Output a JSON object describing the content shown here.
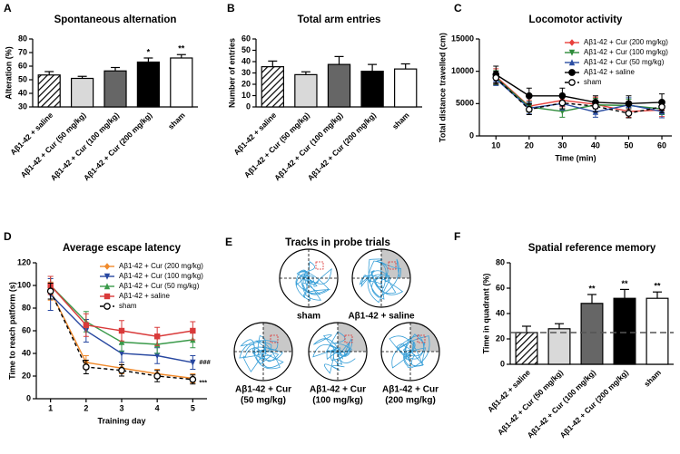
{
  "chart_data": [
    {
      "panel": "A",
      "type": "bar",
      "title": "Spontaneous alternation",
      "ylabel": "Alteration (%)",
      "categories": [
        "Aβ1-42 + saline",
        "Aβ1-42 + Cur (50 mg/kg)",
        "Aβ1-42 + Cur (100 mg/kg)",
        "Aβ1-42 + Cur (200 mg/kg)",
        "sham"
      ],
      "values": [
        53.5,
        51,
        56.5,
        63,
        66
      ],
      "errors": [
        2.5,
        1.5,
        2.5,
        3,
        2.5
      ],
      "colors": [
        "hatch",
        "#d9d9d9",
        "#666666",
        "#000000",
        "#ffffff"
      ],
      "annotations": [
        null,
        null,
        null,
        "*",
        "**"
      ],
      "ylim": [
        30,
        80
      ],
      "yticks": [
        30,
        40,
        50,
        60,
        70,
        80
      ]
    },
    {
      "panel": "B",
      "type": "bar",
      "title": "Total arm entries",
      "ylabel": "Number of entries",
      "categories": [
        "Aβ1-42 + saline",
        "Aβ1-42 + Cur (50 mg/kg)",
        "Aβ1-42 + Cur (100 mg/kg)",
        "Aβ1-42 + Cur (200 mg/kg)",
        "sham"
      ],
      "values": [
        35.5,
        28.5,
        37.5,
        31.5,
        33.5
      ],
      "errors": [
        5,
        2.5,
        7,
        6,
        4.5
      ],
      "colors": [
        "hatch",
        "#d9d9d9",
        "#666666",
        "#000000",
        "#ffffff"
      ],
      "ylim": [
        0,
        60
      ],
      "yticks": [
        0,
        10,
        20,
        30,
        40,
        50,
        60
      ]
    },
    {
      "panel": "C",
      "type": "line",
      "title": "Locomotor activity",
      "ylabel": "Total distance travelled (cm)",
      "xlabel": "Time (min)",
      "x": [
        10,
        20,
        30,
        40,
        50,
        60
      ],
      "xlim": [
        5,
        63
      ],
      "xticks": [
        10,
        20,
        30,
        40,
        50,
        60
      ],
      "ylim": [
        0,
        15000
      ],
      "yticks": [
        0,
        5000,
        10000,
        15000
      ],
      "legend": "upper right",
      "series": [
        {
          "name": "Aβ1-42 + Cur (200 mg/kg)",
          "color": "#e8413c",
          "marker": "diamond",
          "values": [
            9200,
            4600,
            5500,
            4900,
            3800,
            4000
          ],
          "errors": [
            1200,
            900,
            1000,
            1100,
            900,
            1000
          ]
        },
        {
          "name": "Aβ1-42 + Cur (100 mg/kg)",
          "color": "#2e8b3a",
          "marker": "triangle-down",
          "values": [
            9000,
            4500,
            3800,
            4800,
            4700,
            4200
          ],
          "errors": [
            1100,
            800,
            900,
            1000,
            1000,
            900
          ]
        },
        {
          "name": "Aβ1-42 + Cur (50 mg/kg)",
          "color": "#2d4fa3",
          "marker": "triangle",
          "values": [
            8800,
            4300,
            5000,
            3700,
            4800,
            3800
          ],
          "errors": [
            1000,
            900,
            1000,
            800,
            1100,
            1000
          ]
        },
        {
          "name": "Aβ1-42 + saline",
          "color": "#000000",
          "marker": "circle",
          "values": [
            9500,
            6200,
            6200,
            5200,
            5000,
            5200
          ],
          "errors": [
            1300,
            1200,
            1200,
            1000,
            1200,
            1300
          ]
        },
        {
          "name": "sham",
          "color": "#000000",
          "marker": "open-circle",
          "dashed": true,
          "values": [
            9000,
            4100,
            5100,
            4600,
            3500,
            4500
          ],
          "errors": [
            1000,
            800,
            900,
            900,
            700,
            900
          ]
        }
      ]
    },
    {
      "panel": "D",
      "type": "line",
      "title": "Average escape latency",
      "ylabel": "Time to reach patform (s)",
      "xlabel": "Training day",
      "x": [
        1,
        2,
        3,
        4,
        5
      ],
      "xlim": [
        0.6,
        5.4
      ],
      "xticks": [
        1,
        2,
        3,
        4,
        5
      ],
      "ylim": [
        0,
        120
      ],
      "yticks": [
        0,
        20,
        40,
        60,
        80,
        100,
        120
      ],
      "legend": "upper right",
      "annotations": [
        "###",
        "***"
      ],
      "series": [
        {
          "name": "Aβ1-42 + Cur (200 mg/kg)",
          "color": "#f08a2c",
          "marker": "diamond",
          "values": [
            95,
            32,
            27,
            22,
            18
          ],
          "errors": [
            8,
            6,
            5,
            4,
            4
          ]
        },
        {
          "name": "Aβ1-42 + Cur (100 mg/kg)",
          "color": "#2747a0",
          "marker": "triangle-down",
          "values": [
            92,
            60,
            40,
            38,
            32
          ],
          "errors": [
            14,
            10,
            8,
            7,
            6
          ]
        },
        {
          "name": "Aβ1-42 + Cur (50 mg/kg)",
          "color": "#3a9a4a",
          "marker": "triangle",
          "values": [
            100,
            68,
            50,
            48,
            52
          ],
          "errors": [
            8,
            9,
            8,
            8,
            7
          ]
        },
        {
          "name": "Aβ1-42 + saline",
          "color": "#d93a3a",
          "marker": "square",
          "values": [
            100,
            65,
            60,
            55,
            60
          ],
          "errors": [
            8,
            10,
            9,
            8,
            8
          ]
        },
        {
          "name": "sham",
          "color": "#000000",
          "marker": "open-circle",
          "dashed": true,
          "values": [
            95,
            28,
            25,
            20,
            17
          ],
          "errors": [
            7,
            6,
            5,
            5,
            4
          ]
        }
      ]
    },
    {
      "panel": "F",
      "type": "bar",
      "title": "Spatial reference memory",
      "ylabel": "Time in quadrant (%)",
      "categories": [
        "Aβ1-42 + saline",
        "Aβ1-42 + Cur (50 mg/kg)",
        "Aβ1-42 + Cur (100 mg/kg)",
        "Aβ1-42 + Cur (200 mg/kg)",
        "sham"
      ],
      "values": [
        25,
        28,
        48,
        52,
        52
      ],
      "errors": [
        5,
        4,
        7,
        7,
        5
      ],
      "colors": [
        "hatch",
        "#d9d9d9",
        "#666666",
        "#000000",
        "#ffffff"
      ],
      "annotations": [
        null,
        null,
        "**",
        "**",
        "**"
      ],
      "reference_line": 25,
      "ylim": [
        0,
        80
      ],
      "yticks": [
        0,
        20,
        40,
        60,
        80
      ]
    }
  ],
  "tracks": {
    "panel": "E",
    "title": "Tracks in probe trials",
    "labels": [
      [
        "sham"
      ],
      [
        "Aβ1-42 + saline"
      ],
      [
        "Aβ1-42 + Cur",
        "(50 mg/kg)"
      ],
      [
        "Aβ1-42 + Cur",
        "(100 mg/kg)"
      ],
      [
        "Aβ1-42 + Cur",
        "(200 mg/kg)"
      ]
    ]
  }
}
